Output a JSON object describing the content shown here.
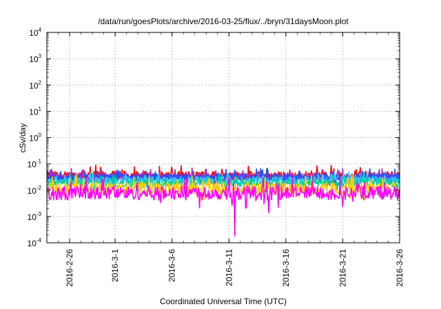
{
  "chart_data": {
    "type": "line",
    "title": "/data/run/goesPlots/archive/2016-03-25/flux/../bryn/31daysMoon.plot",
    "xlabel": "Coordinated Universal Time (UTC)",
    "ylabel": "cSv/day",
    "yscale": "log",
    "ylim": [
      0.0001,
      10000
    ],
    "xlim": [
      "2016-02-24",
      "2016-03-26"
    ],
    "x_ticks": [
      "2016-2-26",
      "2016-3-1",
      "2016-3-6",
      "2016-3-11",
      "2016-3-16",
      "2016-3-21",
      "2016-3-26"
    ],
    "x_tick_dates": [
      "2016-02-26",
      "2016-03-01",
      "2016-03-06",
      "2016-03-11",
      "2016-03-16",
      "2016-03-21",
      "2016-03-26"
    ],
    "y_ticks": [
      {
        "value": 0.0001,
        "base": "10",
        "exp": "-4"
      },
      {
        "value": 0.001,
        "base": "10",
        "exp": "-3"
      },
      {
        "value": 0.01,
        "base": "10",
        "exp": "-2"
      },
      {
        "value": 0.1,
        "base": "10",
        "exp": "-1"
      },
      {
        "value": 1,
        "base": "10",
        "exp": "0"
      },
      {
        "value": 10,
        "base": "10",
        "exp": "1"
      },
      {
        "value": 100,
        "base": "10",
        "exp": "2"
      },
      {
        "value": 1000,
        "base": "10",
        "exp": "3"
      },
      {
        "value": 10000,
        "base": "10",
        "exp": "4"
      }
    ],
    "grid": true,
    "legend": "none",
    "series": [
      {
        "color": "#ff0000",
        "base": 0.036,
        "spread": 0.17
      },
      {
        "color": "#9933cc",
        "base": 0.032,
        "spread": 0.15
      },
      {
        "color": "#1f55ff",
        "base": 0.03,
        "spread": 0.15
      },
      {
        "color": "#33ccff",
        "base": 0.024,
        "spread": 0.14
      },
      {
        "color": "#00cc99",
        "base": 0.019,
        "spread": 0.16
      },
      {
        "color": "#ffcc00",
        "base": 0.012,
        "spread": 0.22
      },
      {
        "color": "#ff00ff",
        "base": 0.0078,
        "spread": 0.26
      }
    ],
    "events": [
      {
        "date": "2016-03-11",
        "min_value": 0.00018
      },
      {
        "date": "2016-03-12",
        "min_value": 0.0021
      },
      {
        "date": "2016-03-14",
        "min_value": 0.0014
      }
    ]
  }
}
